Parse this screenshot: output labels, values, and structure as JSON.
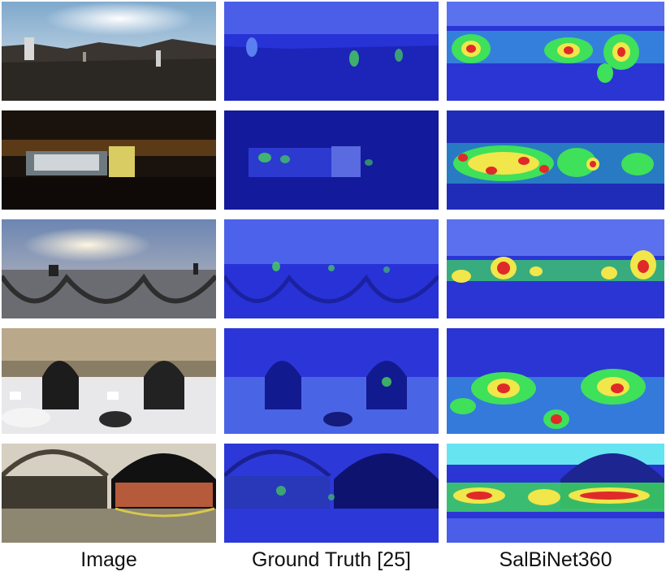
{
  "captions": {
    "col1": "Image",
    "col2": "Ground Truth [25]",
    "col3": "SalBiNet360"
  },
  "rows": [
    {
      "scene": "outdoor-terrain-panorama"
    },
    {
      "scene": "dark-interior-panorama"
    },
    {
      "scene": "sunset-coast-panorama"
    },
    {
      "scene": "vehicle-cabin-panorama"
    },
    {
      "scene": "domed-hall-panorama"
    }
  ],
  "colors": {
    "heat_bg": "#2a34d8",
    "heat_green": "#3fe05a",
    "heat_yellow": "#f1e64a",
    "heat_red": "#e02a2a"
  }
}
